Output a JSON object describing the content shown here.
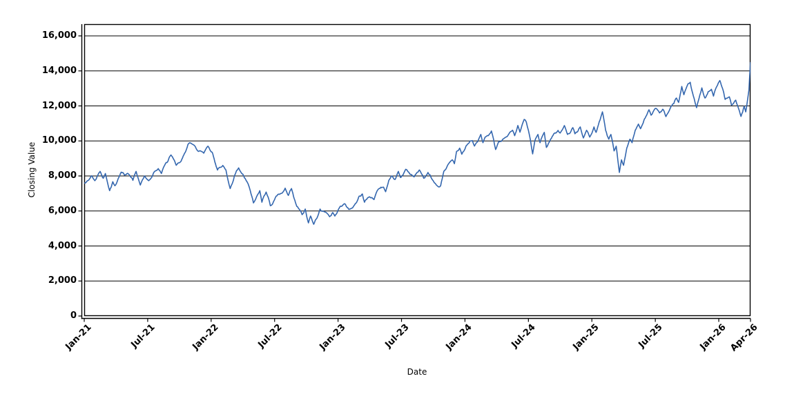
{
  "window": {
    "background": "#ffffff"
  },
  "chart_data": {
    "type": "line",
    "title": "",
    "xlabel": "Date",
    "ylabel": "Closing Value",
    "legend": "none",
    "grid": "horizontal-only",
    "grid_color": "#000000",
    "axis_color": "#000000",
    "plot_border_color": "#000000",
    "ylim": [
      0,
      16670
    ],
    "xlim_months": [
      0,
      63
    ],
    "y_ticks": [
      0,
      2000,
      4000,
      6000,
      8000,
      10000,
      12000,
      14000,
      16000
    ],
    "y_tick_labels": [
      "0",
      "2,000",
      "4,000",
      "6,000",
      "8,000",
      "10,000",
      "12,000",
      "14,000",
      "16,000"
    ],
    "x_ticks": [
      {
        "m": 0,
        "label": "Jan-21"
      },
      {
        "m": 6,
        "label": "Jul-21"
      },
      {
        "m": 12,
        "label": "Jan-22"
      },
      {
        "m": 18,
        "label": "Jul-22"
      },
      {
        "m": 24,
        "label": "Jan-23"
      },
      {
        "m": 30,
        "label": "Jul-23"
      },
      {
        "m": 36,
        "label": "Jan-24"
      },
      {
        "m": 42,
        "label": "Jul-24"
      },
      {
        "m": 48,
        "label": "Jan-25"
      },
      {
        "m": 54,
        "label": "Jul-25"
      },
      {
        "m": 60,
        "label": "Jan-26"
      },
      {
        "m": 63,
        "label": "Apr-26"
      }
    ],
    "series": [
      {
        "name": "Closing Value",
        "color": "#3366ae",
        "x_unit": "months since Jan-2021 (0 = Jan-21, 63 = Apr-26)",
        "points": [
          [
            0,
            7600
          ],
          [
            0.4,
            7750
          ],
          [
            0.7,
            8010
          ],
          [
            1.0,
            7730
          ],
          [
            1.5,
            8260
          ],
          [
            1.8,
            7870
          ],
          [
            2.0,
            8140
          ],
          [
            2.4,
            7160
          ],
          [
            2.7,
            7670
          ],
          [
            2.9,
            7440
          ],
          [
            3.5,
            8220
          ],
          [
            3.8,
            8050
          ],
          [
            4.1,
            8150
          ],
          [
            4.6,
            7750
          ],
          [
            4.9,
            8260
          ],
          [
            5.3,
            7480
          ],
          [
            5.7,
            8000
          ],
          [
            6.1,
            7730
          ],
          [
            6.6,
            8220
          ],
          [
            7.0,
            8420
          ],
          [
            7.3,
            8140
          ],
          [
            7.7,
            8730
          ],
          [
            8.2,
            9200
          ],
          [
            8.7,
            8610
          ],
          [
            9.3,
            9040
          ],
          [
            9.8,
            9790
          ],
          [
            10.1,
            9870
          ],
          [
            10.4,
            9750
          ],
          [
            10.8,
            9400
          ],
          [
            11.3,
            9300
          ],
          [
            11.7,
            9700
          ],
          [
            12.1,
            9350
          ],
          [
            12.6,
            8340
          ],
          [
            13.1,
            8600
          ],
          [
            13.4,
            8340
          ],
          [
            13.8,
            7280
          ],
          [
            14.2,
            8000
          ],
          [
            14.6,
            8460
          ],
          [
            15.0,
            8100
          ],
          [
            15.3,
            7750
          ],
          [
            15.7,
            7160
          ],
          [
            16.0,
            6460
          ],
          [
            16.6,
            7160
          ],
          [
            16.8,
            6500
          ],
          [
            17.2,
            7080
          ],
          [
            17.6,
            6300
          ],
          [
            18.0,
            6650
          ],
          [
            18.6,
            7000
          ],
          [
            19.0,
            7300
          ],
          [
            19.3,
            6890
          ],
          [
            19.6,
            7280
          ],
          [
            20.1,
            6260
          ],
          [
            20.6,
            5790
          ],
          [
            20.9,
            6110
          ],
          [
            21.2,
            5320
          ],
          [
            21.4,
            5710
          ],
          [
            21.7,
            5240
          ],
          [
            22.3,
            6110
          ],
          [
            22.7,
            5950
          ],
          [
            23.2,
            5670
          ],
          [
            23.5,
            5910
          ],
          [
            23.7,
            5710
          ],
          [
            24.2,
            6260
          ],
          [
            24.7,
            6380
          ],
          [
            25.0,
            6100
          ],
          [
            25.5,
            6300
          ],
          [
            26.0,
            6850
          ],
          [
            26.3,
            6970
          ],
          [
            26.5,
            6500
          ],
          [
            27.0,
            6800
          ],
          [
            27.4,
            6650
          ],
          [
            27.8,
            7240
          ],
          [
            28.3,
            7360
          ],
          [
            28.5,
            7100
          ],
          [
            28.8,
            7750
          ],
          [
            29.1,
            8000
          ],
          [
            29.4,
            7800
          ],
          [
            29.7,
            8260
          ],
          [
            29.9,
            7910
          ],
          [
            30.4,
            8380
          ],
          [
            30.8,
            8100
          ],
          [
            31.2,
            7950
          ],
          [
            31.7,
            8340
          ],
          [
            32.1,
            7870
          ],
          [
            32.5,
            8200
          ],
          [
            32.9,
            7800
          ],
          [
            33.3,
            7480
          ],
          [
            33.7,
            7440
          ],
          [
            34.0,
            8260
          ],
          [
            34.3,
            8530
          ],
          [
            34.6,
            8810
          ],
          [
            34.8,
            8920
          ],
          [
            35.0,
            8700
          ],
          [
            35.2,
            9390
          ],
          [
            35.5,
            9590
          ],
          [
            35.7,
            9240
          ],
          [
            36.1,
            9710
          ],
          [
            36.4,
            9900
          ],
          [
            36.7,
            10020
          ],
          [
            36.9,
            9710
          ],
          [
            37.5,
            10370
          ],
          [
            37.7,
            9900
          ],
          [
            37.9,
            10210
          ],
          [
            38.2,
            10300
          ],
          [
            38.5,
            10570
          ],
          [
            38.9,
            9510
          ],
          [
            39.2,
            9980
          ],
          [
            39.7,
            10150
          ],
          [
            40.1,
            10350
          ],
          [
            40.5,
            10610
          ],
          [
            40.7,
            10300
          ],
          [
            41.0,
            10880
          ],
          [
            41.2,
            10500
          ],
          [
            41.6,
            11230
          ],
          [
            41.8,
            11080
          ],
          [
            42.2,
            10020
          ],
          [
            42.4,
            9260
          ],
          [
            42.6,
            9980
          ],
          [
            42.9,
            10370
          ],
          [
            43.1,
            9900
          ],
          [
            43.5,
            10490
          ],
          [
            43.7,
            9630
          ],
          [
            44.1,
            10100
          ],
          [
            44.4,
            10410
          ],
          [
            44.8,
            10600
          ],
          [
            45.0,
            10450
          ],
          [
            45.4,
            10880
          ],
          [
            45.7,
            10370
          ],
          [
            46.2,
            10760
          ],
          [
            46.4,
            10410
          ],
          [
            46.9,
            10800
          ],
          [
            47.2,
            10170
          ],
          [
            47.5,
            10610
          ],
          [
            47.8,
            10220
          ],
          [
            48.2,
            10800
          ],
          [
            48.4,
            10490
          ],
          [
            48.7,
            11100
          ],
          [
            49.0,
            11660
          ],
          [
            49.3,
            10610
          ],
          [
            49.6,
            10100
          ],
          [
            49.8,
            10370
          ],
          [
            50.1,
            9430
          ],
          [
            50.3,
            9700
          ],
          [
            50.6,
            8200
          ],
          [
            50.8,
            8920
          ],
          [
            51.0,
            8610
          ],
          [
            51.3,
            9590
          ],
          [
            51.6,
            10100
          ],
          [
            51.8,
            9900
          ],
          [
            52.1,
            10610
          ],
          [
            52.4,
            10960
          ],
          [
            52.6,
            10700
          ],
          [
            53.1,
            11390
          ],
          [
            53.4,
            11780
          ],
          [
            53.6,
            11470
          ],
          [
            54.0,
            11860
          ],
          [
            54.4,
            11600
          ],
          [
            54.7,
            11810
          ],
          [
            55.0,
            11390
          ],
          [
            55.5,
            11980
          ],
          [
            56.0,
            12450
          ],
          [
            56.2,
            12200
          ],
          [
            56.5,
            13110
          ],
          [
            56.7,
            12640
          ],
          [
            57.1,
            13270
          ],
          [
            57.3,
            13350
          ],
          [
            57.6,
            12560
          ],
          [
            57.9,
            11900
          ],
          [
            58.2,
            12600
          ],
          [
            58.4,
            13030
          ],
          [
            58.7,
            12450
          ],
          [
            59.3,
            12950
          ],
          [
            59.5,
            12560
          ],
          [
            59.8,
            13100
          ],
          [
            60.1,
            13450
          ],
          [
            60.6,
            12370
          ],
          [
            61.0,
            12520
          ],
          [
            61.2,
            12050
          ],
          [
            61.6,
            12330
          ],
          [
            61.8,
            11980
          ],
          [
            62.1,
            11400
          ],
          [
            62.4,
            11980
          ],
          [
            62.55,
            11660
          ],
          [
            62.7,
            12250
          ],
          [
            62.85,
            12900
          ],
          [
            63.0,
            14480
          ]
        ]
      }
    ]
  }
}
